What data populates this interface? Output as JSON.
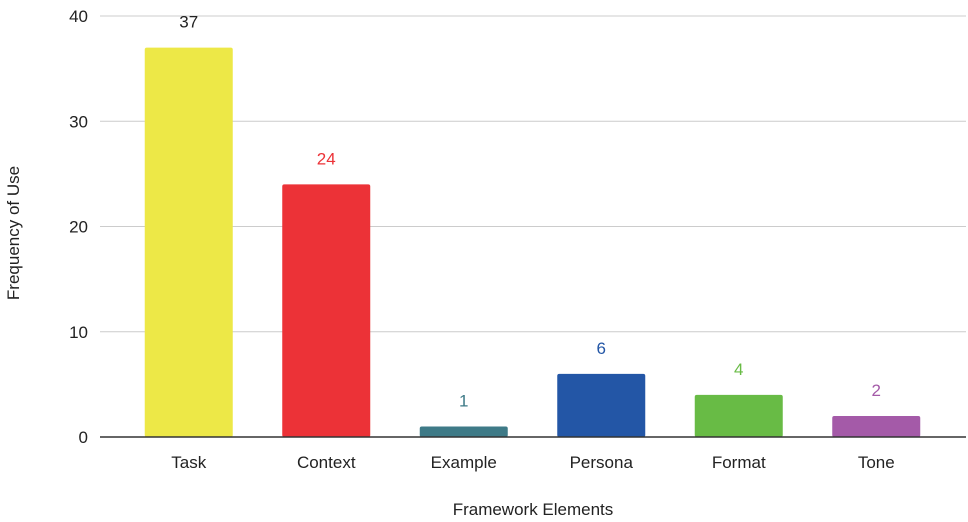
{
  "chart_data": {
    "type": "bar",
    "title": "",
    "xlabel": "Framework Elements",
    "ylabel": "Frequency of Use",
    "ylim": [
      0,
      40
    ],
    "yticks": [
      0,
      10,
      20,
      30,
      40
    ],
    "grid": true,
    "legend": "none",
    "categories": [
      "Task",
      "Context",
      "Example",
      "Persona",
      "Format",
      "Tone"
    ],
    "values": [
      37,
      24,
      1,
      6,
      4,
      2
    ],
    "colors": [
      "#ede847",
      "#ec3237",
      "#3e7a87",
      "#2356a6",
      "#68bb45",
      "#a45aa8"
    ]
  }
}
